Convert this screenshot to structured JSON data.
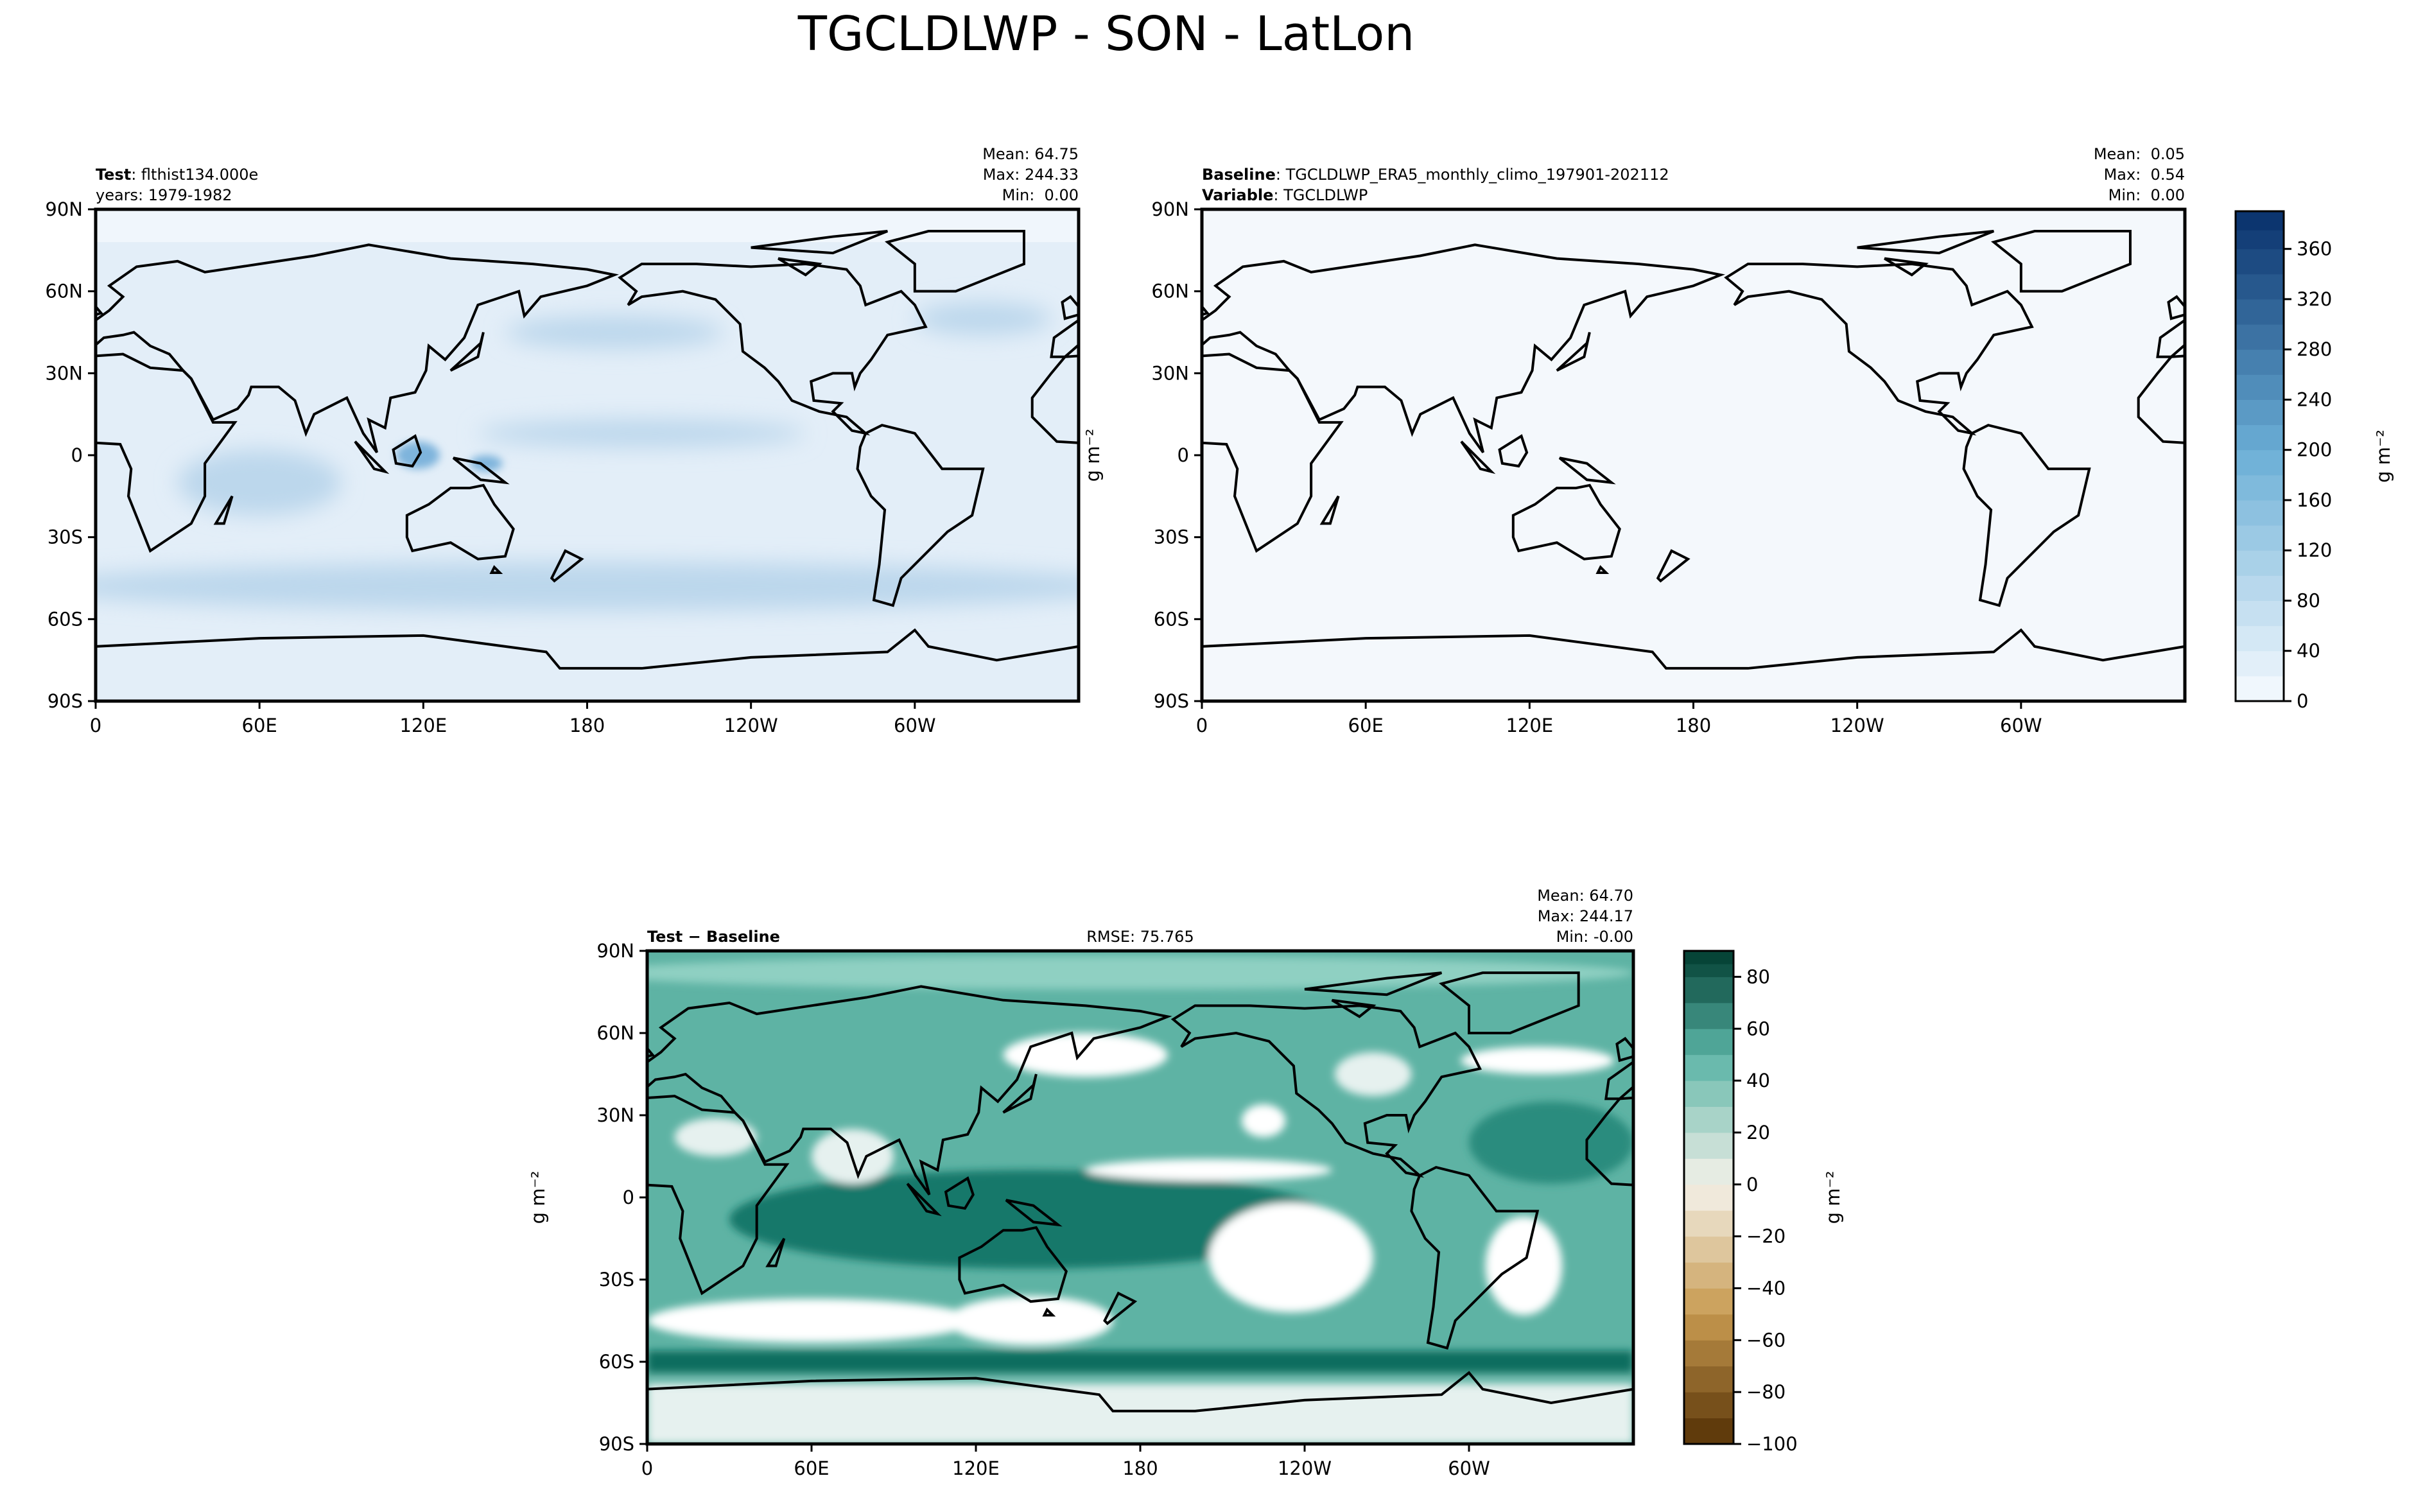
{
  "title": "TGCLDLWP - SON - LatLon",
  "chart_data": [
    {
      "type": "map",
      "header": [
        {
          "bold": "Test",
          "text": ": flthist134.000e"
        },
        {
          "text": "years: 1979-1982"
        }
      ],
      "stats": [
        "Mean: 64.75",
        "Max: 244.33",
        "Min:  0.00"
      ],
      "xlim": [
        0,
        360
      ],
      "xticks": [
        0,
        {
          "value": 60,
          "label": "60E"
        },
        {
          "value": 120,
          "label": "120E"
        },
        180,
        {
          "value": 240,
          "label": "120W"
        },
        {
          "value": 300,
          "label": "60W"
        }
      ],
      "ylim": [
        -90,
        90
      ],
      "yticks": [
        {
          "value": -90,
          "label": "90S"
        },
        {
          "value": -60,
          "label": "60S"
        },
        {
          "value": -30,
          "label": "30S"
        },
        0,
        {
          "value": 30,
          "label": "30N"
        },
        {
          "value": 60,
          "label": "60N"
        },
        {
          "value": 90,
          "label": "90N"
        }
      ]
    },
    {
      "type": "map",
      "header": [
        {
          "bold": "Baseline",
          "text": ": TGCLDLWP_ERA5_monthly_climo_197901-202112"
        },
        {
          "bold": "Variable",
          "text": ": TGCLDLWP"
        }
      ],
      "stats": [
        "Mean:  0.05",
        "Max:  0.54",
        "Min:  0.00"
      ],
      "ylabel": "g m⁻²",
      "xlim": [
        0,
        360
      ],
      "xticks": [
        0,
        {
          "value": 60,
          "label": "60E"
        },
        {
          "value": 120,
          "label": "120E"
        },
        180,
        {
          "value": 240,
          "label": "120W"
        },
        {
          "value": 300,
          "label": "60W"
        }
      ],
      "ylim": [
        -90,
        90
      ],
      "yticks": [
        {
          "value": -90,
          "label": "90S"
        },
        {
          "value": -60,
          "label": "60S"
        },
        {
          "value": -30,
          "label": "30S"
        },
        0,
        {
          "value": 30,
          "label": "30N"
        },
        {
          "value": 60,
          "label": "60N"
        },
        {
          "value": 90,
          "label": "90N"
        }
      ],
      "colorbar": {
        "label": "g m⁻²",
        "ylim": [
          0,
          390
        ],
        "yticks": [
          0,
          40,
          80,
          120,
          160,
          200,
          240,
          280,
          320,
          360
        ],
        "cmap": [
          [
            0,
            "#f7fbff"
          ],
          [
            200,
            "#6aaed6"
          ],
          [
            390,
            "#08306b"
          ]
        ]
      }
    },
    {
      "type": "map",
      "header": [
        {
          "bold": "Test − Baseline"
        }
      ],
      "note": "RMSE: 75.765",
      "stats": [
        "Mean: 64.70",
        "Max: 244.17",
        "Min: -0.00"
      ],
      "ylabel": "g m⁻²",
      "xlim": [
        0,
        360
      ],
      "xticks": [
        0,
        {
          "value": 60,
          "label": "60E"
        },
        {
          "value": 120,
          "label": "120E"
        },
        180,
        {
          "value": 240,
          "label": "120W"
        },
        {
          "value": 300,
          "label": "60W"
        }
      ],
      "ylim": [
        -90,
        90
      ],
      "yticks": [
        {
          "value": -90,
          "label": "90S"
        },
        {
          "value": -60,
          "label": "60S"
        },
        {
          "value": -30,
          "label": "30S"
        },
        0,
        {
          "value": 30,
          "label": "30N"
        },
        {
          "value": 60,
          "label": "60N"
        },
        {
          "value": 90,
          "label": "90N"
        }
      ],
      "colorbar": {
        "label": "g m⁻²",
        "ylim": [
          -100,
          90
        ],
        "yticks": [
          {
            "value": -100,
            "label": "−100"
          },
          {
            "value": -80,
            "label": "−80"
          },
          {
            "value": -60,
            "label": "−60"
          },
          {
            "value": -40,
            "label": "−40"
          },
          {
            "value": -20,
            "label": "−20"
          },
          0,
          20,
          40,
          60,
          80
        ],
        "cmap": [
          [
            -100,
            "#543005"
          ],
          [
            -50,
            "#c79a4f"
          ],
          [
            0,
            "#f5f2ea"
          ],
          [
            50,
            "#5ab4a6"
          ],
          [
            90,
            "#003c30"
          ]
        ]
      }
    }
  ]
}
